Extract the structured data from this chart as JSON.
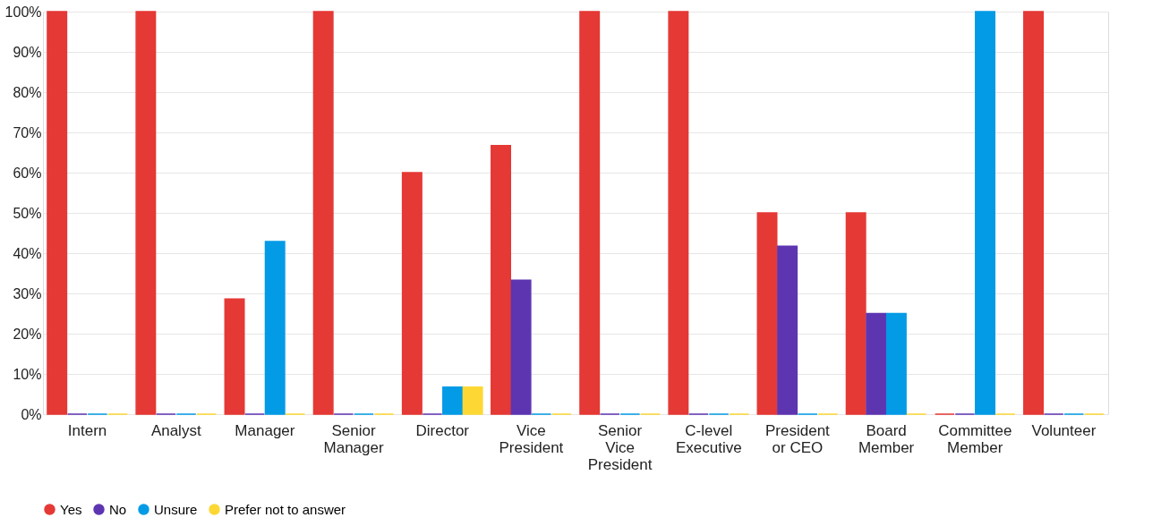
{
  "chart_data": {
    "type": "bar",
    "categories": [
      "Intern",
      "Analyst",
      "Manager",
      "Senior\nManager",
      "Director",
      "Vice\nPresident",
      "Senior\nVice\nPresident",
      "C-level\nExecutive",
      "President\nor CEO",
      "Board\nMember",
      "Committee\nMember",
      "Volunteer"
    ],
    "series": [
      {
        "name": "Yes",
        "color": "#e53935",
        "values": [
          100,
          100,
          28.6,
          100,
          60,
          66.7,
          100,
          100,
          50,
          50,
          0,
          100
        ]
      },
      {
        "name": "No",
        "color": "#5e35b1",
        "values": [
          0,
          0,
          0,
          0,
          0,
          33.3,
          0,
          0,
          41.7,
          25,
          0,
          0
        ]
      },
      {
        "name": "Unsure",
        "color": "#039be5",
        "values": [
          0,
          0,
          42.9,
          0,
          6.7,
          0,
          0,
          0,
          0,
          25,
          100,
          0
        ]
      },
      {
        "name": "Prefer not to answer",
        "color": "#fdd835",
        "values": [
          0,
          0,
          0,
          0,
          6.7,
          0,
          0,
          0,
          0,
          0,
          0,
          0
        ]
      }
    ],
    "ylim": [
      0,
      100
    ],
    "yticks": [
      {
        "value": 0,
        "label": "0%"
      },
      {
        "value": 10,
        "label": "10%"
      },
      {
        "value": 20,
        "label": "20%"
      },
      {
        "value": 30,
        "label": "30%"
      },
      {
        "value": 40,
        "label": "40%"
      },
      {
        "value": 50,
        "label": "50%"
      },
      {
        "value": 60,
        "label": "60%"
      },
      {
        "value": 70,
        "label": "70%"
      },
      {
        "value": 80,
        "label": "80%"
      },
      {
        "value": 90,
        "label": "90%"
      },
      {
        "value": 100,
        "label": "100%"
      }
    ],
    "grid": "y",
    "legend": "bottom left"
  }
}
